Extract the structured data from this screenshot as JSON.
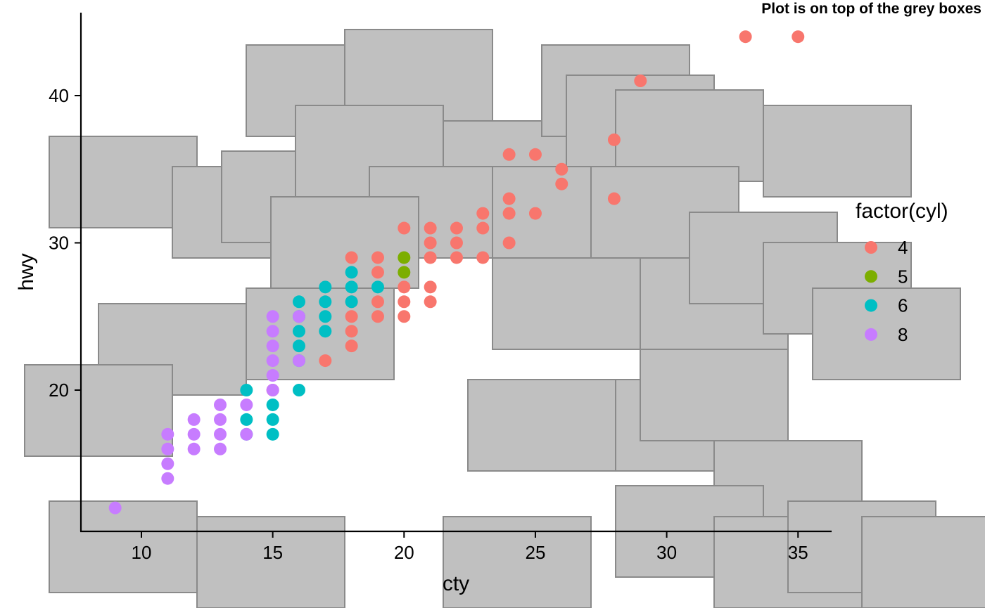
{
  "chart_data": {
    "type": "scatter",
    "title": "Plot is on top of the grey boxes",
    "xlabel": "cty",
    "ylabel": "hwy",
    "xlim": [
      7.7,
      36.3
    ],
    "ylim": [
      10.4,
      45.6
    ],
    "x_ticks": [
      10,
      15,
      20,
      25,
      30,
      35
    ],
    "y_ticks": [
      20,
      30,
      40
    ],
    "grid": false,
    "background_boxes_color": "#c0c0c0",
    "legend": {
      "title": "factor(cyl)",
      "position": "right"
    },
    "series": [
      {
        "name": "4",
        "color": "#f8766d",
        "points": [
          [
            35,
            44
          ],
          [
            33,
            44
          ],
          [
            29,
            41
          ],
          [
            28,
            37
          ],
          [
            28,
            33
          ],
          [
            24,
            36
          ],
          [
            25,
            36
          ],
          [
            26,
            35
          ],
          [
            26,
            34
          ],
          [
            24,
            33
          ],
          [
            24,
            32
          ],
          [
            25,
            32
          ],
          [
            23,
            32
          ],
          [
            23,
            31
          ],
          [
            20,
            31
          ],
          [
            21,
            31
          ],
          [
            22,
            31
          ],
          [
            21,
            30
          ],
          [
            22,
            30
          ],
          [
            24,
            30
          ],
          [
            21,
            29
          ],
          [
            22,
            29
          ],
          [
            23,
            29
          ],
          [
            18,
            29
          ],
          [
            19,
            29
          ],
          [
            19,
            28
          ],
          [
            20,
            27
          ],
          [
            21,
            27
          ],
          [
            19,
            26
          ],
          [
            20,
            26
          ],
          [
            21,
            26
          ],
          [
            18,
            26
          ],
          [
            18,
            25
          ],
          [
            19,
            25
          ],
          [
            20,
            25
          ],
          [
            18,
            24
          ],
          [
            18,
            23
          ],
          [
            17,
            22
          ],
          [
            15,
            20
          ]
        ]
      },
      {
        "name": "5",
        "color": "#7cae00",
        "points": [
          [
            20,
            29
          ],
          [
            20,
            28
          ]
        ]
      },
      {
        "name": "6",
        "color": "#00bfc4",
        "points": [
          [
            16,
            26
          ],
          [
            17,
            27
          ],
          [
            18,
            28
          ],
          [
            19,
            27
          ],
          [
            18,
            27
          ],
          [
            18,
            26
          ],
          [
            17,
            26
          ],
          [
            16,
            25
          ],
          [
            17,
            25
          ],
          [
            16,
            24
          ],
          [
            17,
            24
          ],
          [
            16,
            23
          ],
          [
            16,
            22
          ],
          [
            16,
            20
          ],
          [
            14,
            20
          ],
          [
            15,
            19
          ],
          [
            14,
            18
          ],
          [
            15,
            18
          ],
          [
            15,
            17
          ],
          [
            14,
            17
          ]
        ]
      },
      {
        "name": "8",
        "color": "#c77cff",
        "points": [
          [
            15,
            25
          ],
          [
            16,
            25
          ],
          [
            15,
            24
          ],
          [
            15,
            23
          ],
          [
            15,
            22
          ],
          [
            16,
            22
          ],
          [
            15,
            21
          ],
          [
            15,
            20
          ],
          [
            14,
            19
          ],
          [
            13,
            19
          ],
          [
            12,
            18
          ],
          [
            13,
            18
          ],
          [
            14,
            17
          ],
          [
            11,
            17
          ],
          [
            12,
            17
          ],
          [
            13,
            17
          ],
          [
            11,
            16
          ],
          [
            12,
            16
          ],
          [
            13,
            16
          ],
          [
            11,
            15
          ],
          [
            11,
            14
          ],
          [
            9,
            12
          ]
        ]
      }
    ]
  }
}
